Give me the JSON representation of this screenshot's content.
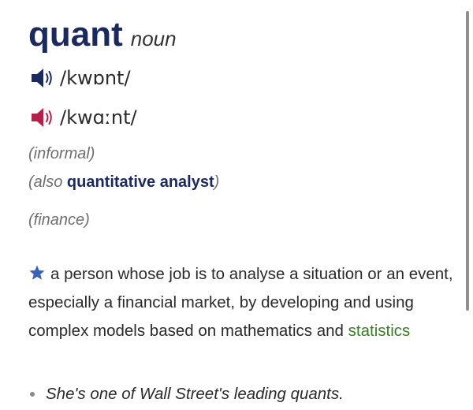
{
  "entry": {
    "headword": "quant",
    "part_of_speech": "noun"
  },
  "pronunciations": [
    {
      "phonetic": "/kwɒnt/",
      "icon": "speaker-icon",
      "color": "#1a2a5e"
    },
    {
      "phonetic": "/kwɑːnt/",
      "icon": "speaker-icon",
      "color": "#b3214a"
    }
  ],
  "labels": {
    "informal": "(informal)",
    "also_open": "(also ",
    "also_term": "quantitative analyst",
    "also_close": ")",
    "finance": "(finance)"
  },
  "definition": {
    "icon": "star-icon",
    "star_color": "#3b62b8",
    "text": "a person whose job is to analyse a situation or an event, especially a financial market, by developing and using complex models based on mathematics and ",
    "link_word": "statistics",
    "link_color": "#3a7d22"
  },
  "example": {
    "text": "She's one of Wall Street's leading quants."
  }
}
